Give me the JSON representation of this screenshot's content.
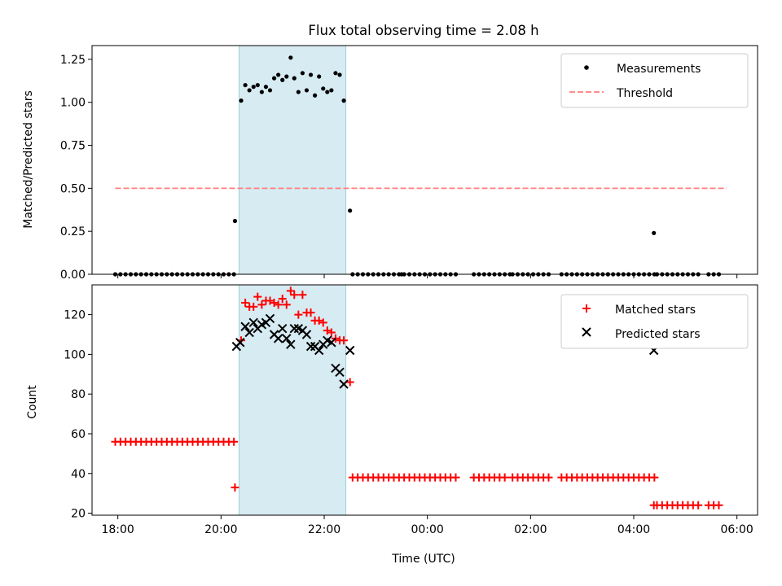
{
  "chart_data": [
    {
      "type": "scatter",
      "title": "Flux total observing time = 2.08 h",
      "ylabel": "Matched/Predicted stars",
      "xlabel": "",
      "xlim": [
        17.5,
        30.4
      ],
      "ylim": [
        0,
        1.33
      ],
      "yticks": [
        0.0,
        0.25,
        0.5,
        0.75,
        1.0,
        1.25
      ],
      "ytick_labels": [
        "0.00",
        "0.25",
        "0.50",
        "0.75",
        "1.00",
        "1.25"
      ],
      "shaded_span": [
        20.35,
        22.42
      ],
      "legend": {
        "placement": "top-right",
        "entries": [
          "Measurements",
          "Threshold"
        ]
      },
      "threshold": {
        "name": "Threshold",
        "value": 0.5,
        "x_range": [
          17.95,
          29.8
        ],
        "color": "#ff7f7f"
      },
      "measurements": {
        "name": "Measurements",
        "color": "#000000",
        "x": [
          20.27,
          20.39,
          20.47,
          20.55,
          20.63,
          20.71,
          20.79,
          20.87,
          20.95,
          21.03,
          21.11,
          21.19,
          21.27,
          21.35,
          21.42,
          21.5,
          21.58,
          21.66,
          21.74,
          21.82,
          21.9,
          21.98,
          22.06,
          22.14,
          22.22,
          22.3,
          22.38,
          22.5,
          23.5,
          25.6,
          27.5,
          28.39
        ],
        "y": [
          0.31,
          1.01,
          1.1,
          1.07,
          1.09,
          1.1,
          1.06,
          1.09,
          1.07,
          1.14,
          1.16,
          1.13,
          1.15,
          1.26,
          1.14,
          1.06,
          1.17,
          1.07,
          1.16,
          1.04,
          1.15,
          1.08,
          1.06,
          1.07,
          1.17,
          1.16,
          1.01,
          0.37,
          0.0,
          0.0,
          0.0,
          0.24
        ],
        "zero_ranges": [
          [
            17.95,
            20.25
          ],
          [
            22.55,
            24.6
          ],
          [
            24.9,
            25.55
          ],
          [
            25.65,
            26.4
          ],
          [
            26.6,
            28.4
          ],
          [
            28.45,
            29.25
          ],
          [
            29.45,
            29.65
          ]
        ]
      }
    },
    {
      "type": "scatter",
      "title": "",
      "xlabel": "Time (UTC)",
      "ylabel": "Count",
      "xlim": [
        17.5,
        30.4
      ],
      "ylim": [
        19,
        135
      ],
      "yticks": [
        20,
        40,
        60,
        80,
        100,
        120
      ],
      "ytick_labels": [
        "20",
        "40",
        "60",
        "80",
        "100",
        "120"
      ],
      "xticks": [
        18,
        20,
        22,
        24,
        26,
        28,
        30
      ],
      "xtick_labels": [
        "18:00",
        "20:00",
        "22:00",
        "00:00",
        "02:00",
        "04:00",
        "06:00"
      ],
      "shaded_span": [
        20.35,
        22.42
      ],
      "legend": {
        "placement": "top-right",
        "entries": [
          "Matched stars",
          "Predicted stars"
        ]
      },
      "matched": {
        "name": "Matched stars",
        "color": "#ff0000",
        "x": [
          20.27,
          20.39,
          20.47,
          20.55,
          20.63,
          20.71,
          20.79,
          20.87,
          20.95,
          21.03,
          21.11,
          21.19,
          21.27,
          21.35,
          21.42,
          21.5,
          21.58,
          21.66,
          21.74,
          21.82,
          21.9,
          21.98,
          22.06,
          22.14,
          22.22,
          22.3,
          22.38,
          22.5,
          28.39
        ],
        "y": [
          33,
          107,
          126,
          124,
          124,
          129,
          125,
          127,
          127,
          126,
          125,
          128,
          125,
          132,
          130,
          120,
          130,
          121,
          121,
          117,
          117,
          116,
          112,
          111,
          108,
          107,
          107,
          86,
          24
        ],
        "flat_segments": [
          {
            "value": 56,
            "ranges": [
              [
                17.95,
                20.25
              ]
            ]
          },
          {
            "value": 38,
            "ranges": [
              [
                22.55,
                24.6
              ],
              [
                24.9,
                25.55
              ],
              [
                25.65,
                26.4
              ],
              [
                26.6,
                28.4
              ]
            ]
          },
          {
            "value": 24,
            "ranges": [
              [
                28.45,
                29.25
              ],
              [
                29.45,
                29.65
              ]
            ]
          }
        ]
      },
      "predicted": {
        "name": "Predicted stars",
        "color": "#000000",
        "x": [
          20.3,
          20.37,
          20.47,
          20.55,
          20.63,
          20.71,
          20.79,
          20.87,
          20.95,
          21.03,
          21.11,
          21.19,
          21.27,
          21.35,
          21.42,
          21.5,
          21.58,
          21.66,
          21.74,
          21.82,
          21.9,
          21.98,
          22.06,
          22.14,
          22.22,
          22.3,
          22.38,
          22.5,
          28.39
        ],
        "y": [
          104,
          106,
          114,
          111,
          116,
          113,
          115,
          116,
          118,
          110,
          108,
          113,
          108,
          105,
          113,
          113,
          112,
          110,
          104,
          104,
          102,
          105,
          107,
          106,
          93,
          91,
          85,
          102,
          102
        ]
      }
    }
  ]
}
